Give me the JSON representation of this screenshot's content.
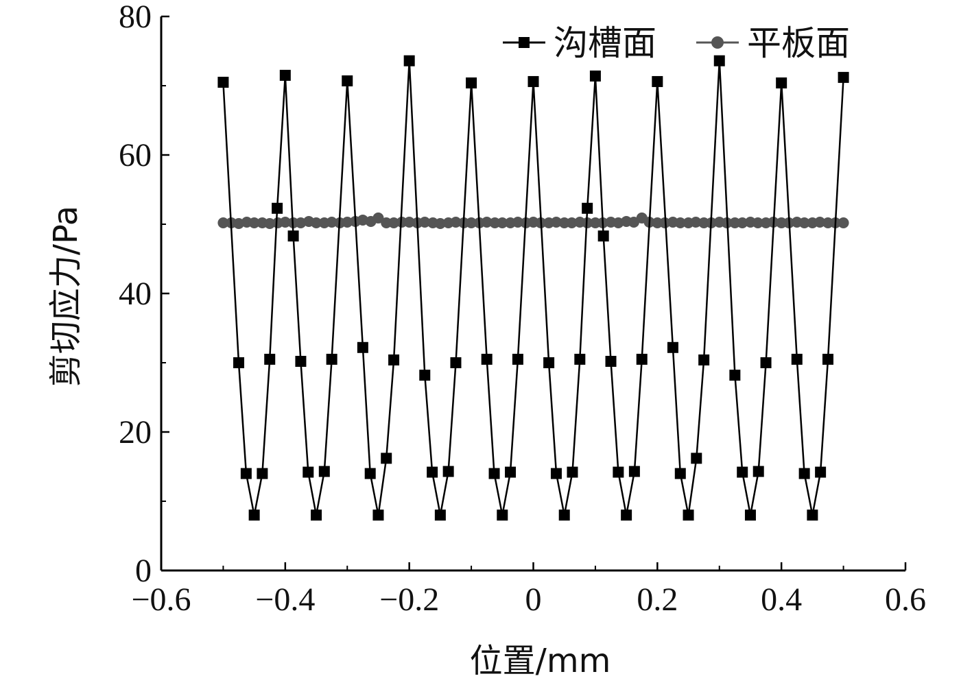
{
  "chart_data": {
    "type": "line",
    "xlabel": "位置/mm",
    "ylabel": "剪切应力/Pa",
    "xlim": [
      -0.6,
      0.6
    ],
    "ylim": [
      0,
      80
    ],
    "x_ticks": [
      -0.6,
      -0.4,
      -0.2,
      0,
      0.2,
      0.4,
      0.6
    ],
    "x_tick_labels": [
      "−0.6",
      "−0.4",
      "−0.2",
      "0",
      "0.2",
      "0.4",
      "0.6"
    ],
    "y_ticks": [
      0,
      20,
      40,
      60,
      80
    ],
    "y_tick_labels": [
      "0",
      "20",
      "40",
      "60",
      "80"
    ],
    "y_minor_ticks": [
      10,
      30,
      50,
      70
    ],
    "x_minor_ticks": [
      -0.5,
      -0.3,
      -0.1,
      0.1,
      0.3,
      0.5
    ],
    "legend_position": "top-right",
    "series": [
      {
        "name": "沟槽面",
        "color": "#000000",
        "marker": "square",
        "points": [
          [
            -0.5,
            70.5
          ],
          [
            -0.475,
            30.0
          ],
          [
            -0.463,
            14.0
          ],
          [
            -0.45,
            8.0
          ],
          [
            -0.437,
            14.0
          ],
          [
            -0.425,
            30.5
          ],
          [
            -0.413,
            52.3
          ],
          [
            -0.4,
            71.5
          ],
          [
            -0.387,
            48.3
          ],
          [
            -0.375,
            30.2
          ],
          [
            -0.363,
            14.2
          ],
          [
            -0.35,
            8.0
          ],
          [
            -0.337,
            14.3
          ],
          [
            -0.325,
            30.5
          ],
          [
            -0.3,
            70.7
          ],
          [
            -0.275,
            32.2
          ],
          [
            -0.263,
            14.0
          ],
          [
            -0.25,
            8.0
          ],
          [
            -0.237,
            16.2
          ],
          [
            -0.225,
            30.4
          ],
          [
            -0.2,
            73.6
          ],
          [
            -0.175,
            28.2
          ],
          [
            -0.163,
            14.2
          ],
          [
            -0.15,
            8.0
          ],
          [
            -0.137,
            14.3
          ],
          [
            -0.125,
            30.0
          ],
          [
            -0.1,
            70.4
          ],
          [
            -0.075,
            30.5
          ],
          [
            -0.063,
            14.0
          ],
          [
            -0.05,
            8.0
          ],
          [
            -0.037,
            14.2
          ],
          [
            -0.025,
            30.5
          ],
          [
            0.0,
            70.6
          ],
          [
            0.025,
            30.0
          ],
          [
            0.037,
            14.0
          ],
          [
            0.05,
            8.0
          ],
          [
            0.063,
            14.2
          ],
          [
            0.075,
            30.5
          ],
          [
            0.087,
            52.3
          ],
          [
            0.1,
            71.4
          ],
          [
            0.113,
            48.3
          ],
          [
            0.125,
            30.2
          ],
          [
            0.137,
            14.2
          ],
          [
            0.15,
            8.0
          ],
          [
            0.163,
            14.3
          ],
          [
            0.175,
            30.5
          ],
          [
            0.2,
            70.6
          ],
          [
            0.225,
            32.2
          ],
          [
            0.237,
            14.0
          ],
          [
            0.25,
            8.0
          ],
          [
            0.263,
            16.2
          ],
          [
            0.275,
            30.4
          ],
          [
            0.3,
            73.6
          ],
          [
            0.325,
            28.2
          ],
          [
            0.337,
            14.2
          ],
          [
            0.35,
            8.0
          ],
          [
            0.363,
            14.3
          ],
          [
            0.375,
            30.0
          ],
          [
            0.4,
            70.4
          ],
          [
            0.425,
            30.5
          ],
          [
            0.437,
            14.0
          ],
          [
            0.45,
            8.0
          ],
          [
            0.463,
            14.2
          ],
          [
            0.475,
            30.5
          ],
          [
            0.5,
            71.2
          ]
        ]
      },
      {
        "name": "平板面",
        "color": "#555555",
        "marker": "circle",
        "points": [
          [
            -0.5,
            50.2
          ],
          [
            -0.487,
            50.2
          ],
          [
            -0.475,
            50.1
          ],
          [
            -0.462,
            50.3
          ],
          [
            -0.45,
            50.2
          ],
          [
            -0.437,
            50.2
          ],
          [
            -0.425,
            50.1
          ],
          [
            -0.412,
            50.2
          ],
          [
            -0.4,
            50.3
          ],
          [
            -0.387,
            50.2
          ],
          [
            -0.375,
            50.2
          ],
          [
            -0.362,
            50.4
          ],
          [
            -0.35,
            50.2
          ],
          [
            -0.337,
            50.2
          ],
          [
            -0.325,
            50.3
          ],
          [
            -0.312,
            50.2
          ],
          [
            -0.3,
            50.3
          ],
          [
            -0.287,
            50.4
          ],
          [
            -0.275,
            50.6
          ],
          [
            -0.262,
            50.4
          ],
          [
            -0.25,
            50.9
          ],
          [
            -0.237,
            50.2
          ],
          [
            -0.225,
            50.2
          ],
          [
            -0.212,
            50.3
          ],
          [
            -0.2,
            50.3
          ],
          [
            -0.187,
            50.2
          ],
          [
            -0.175,
            50.3
          ],
          [
            -0.162,
            50.2
          ],
          [
            -0.15,
            50.1
          ],
          [
            -0.137,
            50.2
          ],
          [
            -0.125,
            50.3
          ],
          [
            -0.112,
            50.2
          ],
          [
            -0.1,
            50.2
          ],
          [
            -0.087,
            50.2
          ],
          [
            -0.075,
            50.3
          ],
          [
            -0.062,
            50.2
          ],
          [
            -0.05,
            50.2
          ],
          [
            -0.037,
            50.2
          ],
          [
            -0.025,
            50.3
          ],
          [
            -0.012,
            50.2
          ],
          [
            0.0,
            50.3
          ],
          [
            0.012,
            50.2
          ],
          [
            0.025,
            50.2
          ],
          [
            0.037,
            50.3
          ],
          [
            0.05,
            50.2
          ],
          [
            0.062,
            50.2
          ],
          [
            0.075,
            50.3
          ],
          [
            0.087,
            50.2
          ],
          [
            0.1,
            50.2
          ],
          [
            0.112,
            50.2
          ],
          [
            0.125,
            50.3
          ],
          [
            0.137,
            50.2
          ],
          [
            0.15,
            50.4
          ],
          [
            0.162,
            50.3
          ],
          [
            0.175,
            50.9
          ],
          [
            0.187,
            50.3
          ],
          [
            0.2,
            50.2
          ],
          [
            0.212,
            50.2
          ],
          [
            0.225,
            50.3
          ],
          [
            0.237,
            50.2
          ],
          [
            0.25,
            50.2
          ],
          [
            0.262,
            50.3
          ],
          [
            0.275,
            50.2
          ],
          [
            0.287,
            50.2
          ],
          [
            0.3,
            50.3
          ],
          [
            0.312,
            50.2
          ],
          [
            0.325,
            50.2
          ],
          [
            0.337,
            50.2
          ],
          [
            0.35,
            50.3
          ],
          [
            0.362,
            50.2
          ],
          [
            0.375,
            50.2
          ],
          [
            0.387,
            50.3
          ],
          [
            0.4,
            50.2
          ],
          [
            0.412,
            50.2
          ],
          [
            0.425,
            50.3
          ],
          [
            0.437,
            50.2
          ],
          [
            0.45,
            50.2
          ],
          [
            0.462,
            50.3
          ],
          [
            0.475,
            50.2
          ],
          [
            0.487,
            50.2
          ],
          [
            0.5,
            50.2
          ]
        ]
      }
    ]
  }
}
